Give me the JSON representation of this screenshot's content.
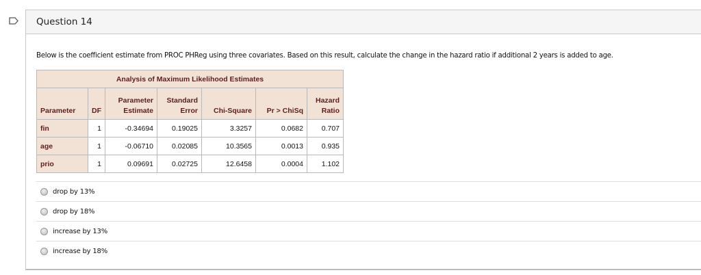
{
  "question": {
    "title": "Question 14",
    "text": "Below is the coefficient estimate from PROC PHReg using three covariates.  Based on this result, calculate the change in the hazard ratio if additional 2 years is added to age."
  },
  "table": {
    "title": "Analysis of Maximum Likelihood Estimates",
    "headers": [
      [
        "",
        "Parameter"
      ],
      [
        "",
        "DF"
      ],
      [
        "Parameter",
        "Estimate"
      ],
      [
        "Standard",
        "Error"
      ],
      [
        "",
        "Chi-Square"
      ],
      [
        "",
        "Pr > ChiSq"
      ],
      [
        "Hazard",
        "Ratio"
      ]
    ],
    "rows": [
      [
        "fin",
        "1",
        "-0.34694",
        "0.19025",
        "3.3257",
        "0.0682",
        "0.707"
      ],
      [
        "age",
        "1",
        "-0.06710",
        "0.02085",
        "10.3565",
        "0.0013",
        "0.935"
      ],
      [
        "prio",
        "1",
        "0.09691",
        "0.02725",
        "12.6458",
        "0.0004",
        "1.102"
      ]
    ]
  },
  "options": [
    "drop by 13%",
    "drop by 18%",
    "increase by 13%",
    "increase by 18%"
  ],
  "colors": {
    "table_header_bg": "#f2e2d6",
    "table_header_text": "#5a1e1e"
  }
}
